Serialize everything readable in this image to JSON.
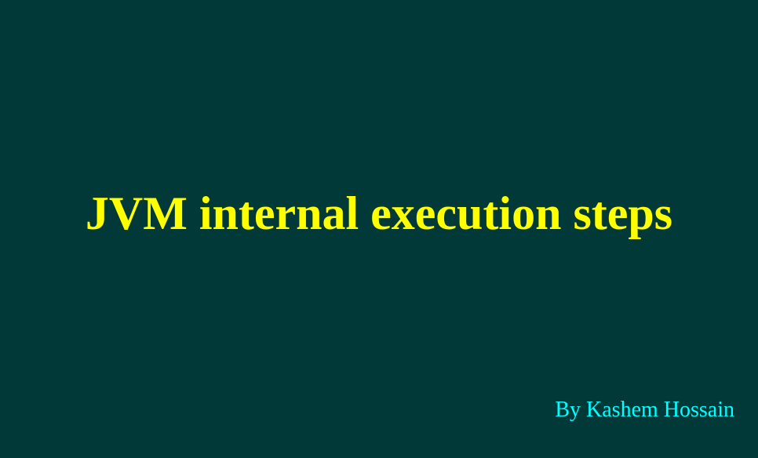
{
  "slide": {
    "title": "JVM internal execution steps",
    "author": "By Kashem Hossain"
  },
  "colors": {
    "background": "#013838",
    "title": "#ffff00",
    "author": "#00ffff"
  }
}
